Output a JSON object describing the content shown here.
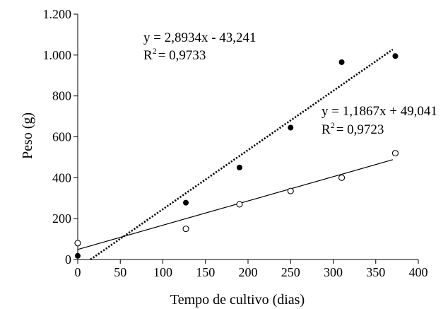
{
  "chart_data": {
    "type": "scatter",
    "title": "",
    "xlabel": "Tempo de cultivo (dias)",
    "ylabel": "Peso (g)",
    "xlim": [
      0,
      400
    ],
    "ylim": [
      0,
      1200
    ],
    "x_ticks": [
      0,
      50,
      100,
      150,
      200,
      250,
      300,
      350,
      400
    ],
    "x_tick_labels": [
      "0",
      "50",
      "100",
      "150",
      "200",
      "250",
      "300",
      "350",
      "400"
    ],
    "y_ticks": [
      0,
      200,
      400,
      600,
      800,
      1000,
      1200
    ],
    "y_tick_labels": [
      "0",
      "200",
      "400",
      "600",
      "800",
      "1.000",
      "1.200"
    ],
    "grid": false,
    "series": [
      {
        "marker": "filled-circle",
        "points": [
          {
            "x": 0,
            "y": 18
          },
          {
            "x": 127,
            "y": 278
          },
          {
            "x": 190,
            "y": 450
          },
          {
            "x": 250,
            "y": 645
          },
          {
            "x": 310,
            "y": 965
          },
          {
            "x": 373,
            "y": 995
          }
        ],
        "trendline": {
          "style": "dotted",
          "slope": 2.8934,
          "intercept": -43.241,
          "x_range": [
            15,
            370
          ]
        }
      },
      {
        "marker": "open-circle",
        "points": [
          {
            "x": 0,
            "y": 80
          },
          {
            "x": 127,
            "y": 150
          },
          {
            "x": 190,
            "y": 270
          },
          {
            "x": 250,
            "y": 335
          },
          {
            "x": 310,
            "y": 400
          },
          {
            "x": 373,
            "y": 520
          }
        ],
        "trendline": {
          "style": "solid",
          "slope": 1.1867,
          "intercept": 49.041,
          "x_range": [
            0,
            370
          ]
        }
      }
    ],
    "annotations": [
      {
        "eq": "y = 2,8934x - 43,241",
        "r2_prefix": "R",
        "r2_sup": "2",
        "r2_value": "= 0,9733"
      },
      {
        "eq": "y = 1,1867x + 49,041",
        "r2_prefix": "R",
        "r2_sup": "2",
        "r2_value": "= 0,9723"
      }
    ]
  }
}
